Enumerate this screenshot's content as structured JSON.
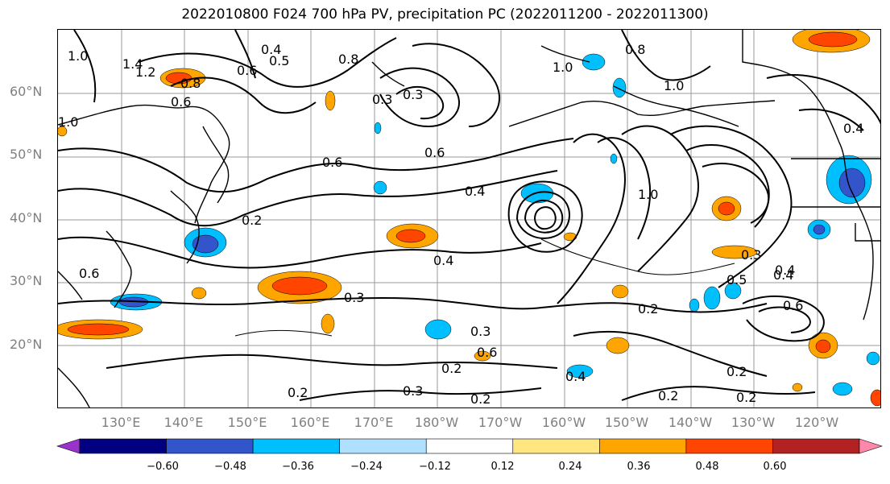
{
  "title": "2022010800 F024 700 hPa PV, precipitation PC (2022011200 - 2022011300)",
  "lat_labels": [
    "60°N",
    "50°N",
    "40°N",
    "30°N",
    "20°N"
  ],
  "lon_labels": [
    "130°E",
    "140°E",
    "150°E",
    "160°E",
    "170°E",
    "180°W",
    "170°W",
    "160°W",
    "150°W",
    "140°W",
    "130°W",
    "120°W"
  ],
  "contour_labels": [
    "1.0",
    "1.4",
    "1.2",
    "0.8",
    "0.6",
    "0.5",
    "0.4",
    "1.0",
    "0.8",
    "0.3",
    "0.3",
    "0.6",
    "1.0",
    "0.8",
    "0.6",
    "0.2",
    "0.4",
    "0.4",
    "0.3",
    "0.3",
    "0.2",
    "0.2",
    "0.3",
    "0.2",
    "0.4",
    "1.0",
    "0.4",
    "0.2",
    "0.3",
    "0.5",
    "0.4",
    "0.6",
    "0.2",
    "0.2",
    "0.6",
    "0.4",
    "1.0",
    "0.6",
    "0.6",
    "0.2"
  ],
  "colorbar": {
    "colors": [
      "#9933cc",
      "#000080",
      "#3355cc",
      "#00bfff",
      "#b0e0ff",
      "#ffffff",
      "#ffe680",
      "#ffa500",
      "#ff4500",
      "#b22222",
      "#ff88aa"
    ],
    "labels": [
      "−0.60",
      "−0.48",
      "−0.36",
      "−0.24",
      "−0.12",
      "0.12",
      "0.24",
      "0.36",
      "0.48",
      "0.60"
    ]
  },
  "palette": {
    "positive": "#ffa500",
    "positive_core": "#ff4500",
    "negative": "#00bfff",
    "negative_core": "#3355cc"
  }
}
